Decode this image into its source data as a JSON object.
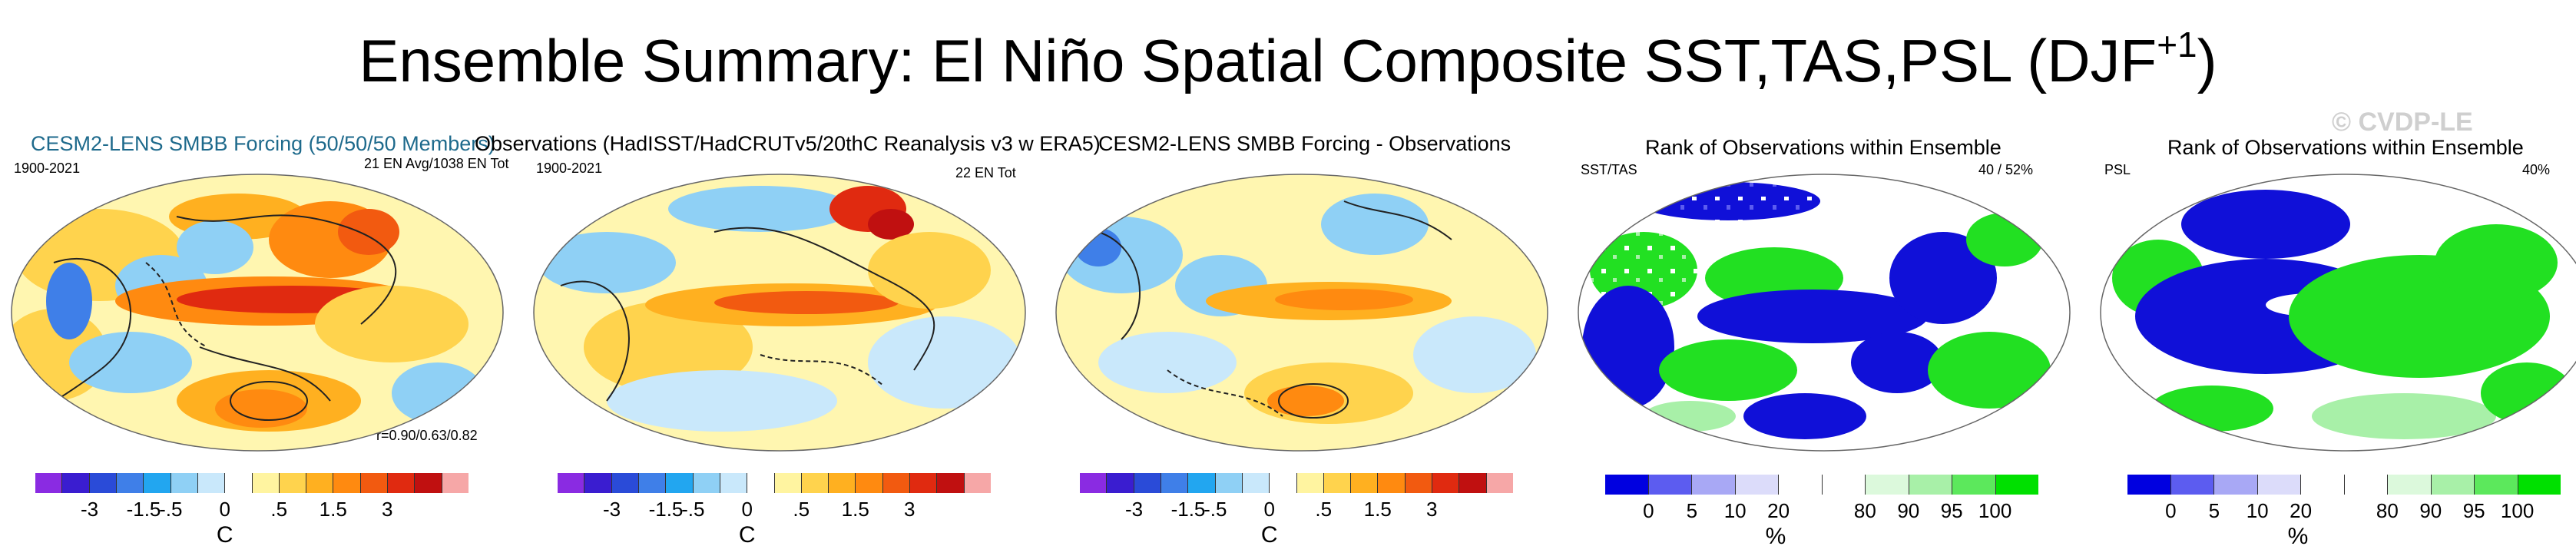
{
  "title": {
    "main": "Ensemble Summary: El Niño Spatial Composite SST,TAS,PSL (DJF",
    "sup": "+1",
    "close": ")"
  },
  "watermark": "© CVDP-LE",
  "panels": [
    {
      "title": "CESM2-LENS SMBB Forcing (50/50/50 Members)",
      "period": "1900-2021",
      "note": "21 EN Avg/1038 EN Tot",
      "stat": "r=0.90/0.63/0.82"
    },
    {
      "title": "Observations (HadISST/HadCRUTv5/20thC Reanalysis v3 w ERA5)",
      "period": "1900-2021",
      "note": "22 EN Tot"
    },
    {
      "title": "CESM2-LENS SMBB Forcing - Observations"
    },
    {
      "title": "Rank of Observations within Ensemble",
      "label": "SST/TAS",
      "note": "40 /  52%"
    },
    {
      "title": "Rank of Observations within Ensemble",
      "label": "PSL",
      "note": "40%"
    }
  ],
  "colorbar_temp": {
    "ticks": [
      "-3",
      "-1.5",
      "-.5",
      "0",
      ".5",
      "1.5",
      "3"
    ],
    "unit": "C",
    "colors": [
      "#8a2be2",
      "#3a1dd0",
      "#2a4bd8",
      "#3f7fe8",
      "#22a6f0",
      "#8fd0f5",
      "#c9e8fb",
      "#ffffff",
      "#fff4a0",
      "#ffd34d",
      "#ffb020",
      "#ff8a10",
      "#f25a10",
      "#e02a10",
      "#c01010",
      "#f6a7a7"
    ]
  },
  "colorbar_rank": {
    "ticks": [
      "0",
      "5",
      "10",
      "20",
      "80",
      "90",
      "95",
      "100"
    ],
    "unit": "%",
    "colors": [
      "#0000e0",
      "#5c5cf0",
      "#a8a8f5",
      "#dcdcfa",
      "#ffffff",
      "#ffffff",
      "#dcf9dc",
      "#a8f0a8",
      "#5ce85c",
      "#00e000"
    ]
  }
}
